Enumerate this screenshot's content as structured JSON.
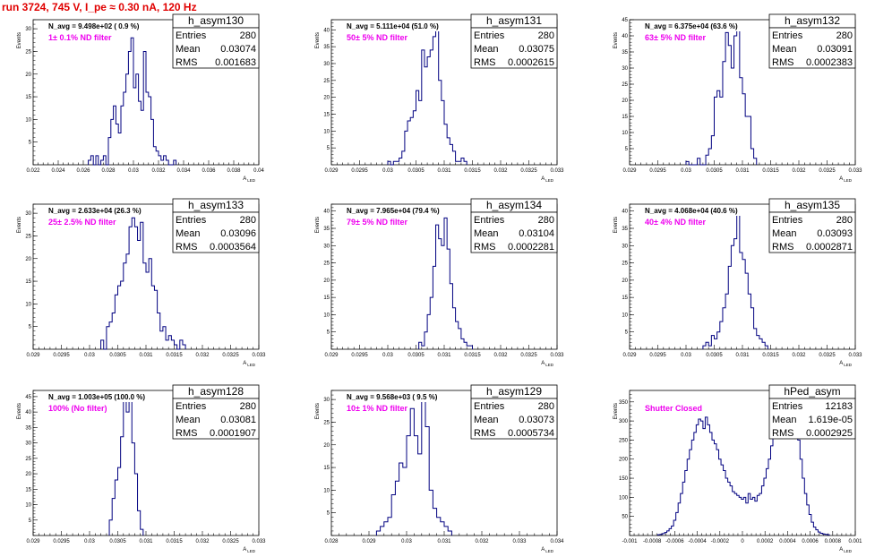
{
  "title": "run 3724,   745 V, I_pe ≈ 0.30 nA, 120 Hz",
  "colors": {
    "histogram": "#000080",
    "title": "#e00000",
    "filter_label": "#ee00ee"
  },
  "chart_data": [
    {
      "type": "bar",
      "name": "h_asym130",
      "ylabel": "Events",
      "xlabel": "A_LED",
      "xlim": [
        0.022,
        0.04
      ],
      "ylim": [
        0,
        32
      ],
      "xticks": [
        "0.022",
        "0.024",
        "0.026",
        "0.028",
        "0.03",
        "0.032",
        "0.034",
        "0.036",
        "0.038",
        "0.04"
      ],
      "yticks": [
        5,
        10,
        15,
        20,
        25,
        30
      ],
      "n_avg": "N_avg = 9.498e+02 ( 0.9 %)",
      "filter": "1± 0.1% ND filter",
      "stats": {
        "entries_label": "Entries",
        "entries": "280",
        "mean_label": "Mean",
        "mean": "0.03074",
        "rms_label": "RMS",
        "rms": "0.001683"
      },
      "bins": {
        "x0": 0.0264,
        "w": 0.0002,
        "values": [
          1,
          2,
          0,
          2,
          0,
          1,
          2,
          0,
          6,
          10,
          13,
          9,
          7,
          13,
          16,
          20,
          25,
          28,
          17,
          20,
          14,
          12,
          25,
          16,
          15,
          10,
          4,
          3,
          2,
          1,
          2,
          1,
          0,
          0,
          1
        ]
      }
    },
    {
      "type": "bar",
      "name": "h_asym131",
      "ylabel": "Events",
      "xlabel": "A_LED",
      "xlim": [
        0.029,
        0.033
      ],
      "ylim": [
        0,
        43
      ],
      "xticks": [
        "0.029",
        "0.0295",
        "0.03",
        "0.0305",
        "0.031",
        "0.0315",
        "0.032",
        "0.0325",
        "0.033"
      ],
      "yticks": [
        5,
        10,
        15,
        20,
        25,
        30,
        35,
        40
      ],
      "n_avg": "N_avg = 5.111e+04 (51.0 %)",
      "filter": "50± 5% ND filter",
      "stats": {
        "entries_label": "Entries",
        "entries": "280",
        "mean_label": "Mean",
        "mean": "0.03075",
        "rms_label": "RMS",
        "rms": "0.0002615"
      },
      "bins": {
        "x0": 0.03,
        "w": 5e-05,
        "values": [
          1,
          0,
          1,
          1,
          2,
          4,
          10,
          13,
          14,
          16,
          22,
          19,
          34,
          29,
          32,
          34,
          38,
          40,
          25,
          19,
          12,
          8,
          6,
          4,
          1,
          1,
          2,
          1
        ]
      }
    },
    {
      "type": "bar",
      "name": "h_asym132",
      "ylabel": "Events",
      "xlabel": "A_LED",
      "xlim": [
        0.029,
        0.033
      ],
      "ylim": [
        0,
        45
      ],
      "xticks": [
        "0.029",
        "0.0295",
        "0.03",
        "0.0305",
        "0.031",
        "0.0315",
        "0.032",
        "0.0325",
        "0.033"
      ],
      "yticks": [
        5,
        10,
        15,
        20,
        25,
        30,
        35,
        40,
        45
      ],
      "n_avg": "N_avg = 6.375e+04 (63.6 %)",
      "filter": "63± 5% ND filter",
      "stats": {
        "entries_label": "Entries",
        "entries": "280",
        "mean_label": "Mean",
        "mean": "0.03091",
        "rms_label": "RMS",
        "rms": "0.0002383"
      },
      "bins": {
        "x0": 0.03,
        "w": 5e-05,
        "values": [
          1,
          0,
          0,
          0,
          2,
          0,
          0,
          3,
          5,
          9,
          21,
          23,
          21,
          32,
          41,
          37,
          30,
          40,
          44,
          27,
          22,
          15,
          15,
          5,
          2
        ]
      }
    },
    {
      "type": "bar",
      "name": "h_asym133",
      "ylabel": "Events",
      "xlabel": "A_LED",
      "xlim": [
        0.029,
        0.033
      ],
      "ylim": [
        0,
        32
      ],
      "xticks": [
        "0.029",
        "0.0295",
        "0.03",
        "0.0305",
        "0.031",
        "0.0315",
        "0.032",
        "0.0325",
        "0.033"
      ],
      "yticks": [
        5,
        10,
        15,
        20,
        25,
        30
      ],
      "n_avg": "N_avg = 2.633e+04 (26.3 %)",
      "filter": "25± 2.5% ND filter",
      "stats": {
        "entries_label": "Entries",
        "entries": "280",
        "mean_label": "Mean",
        "mean": "0.03096",
        "rms_label": "RMS",
        "rms": "0.0003564"
      },
      "bins": {
        "x0": 0.0302,
        "w": 5e-05,
        "values": [
          2,
          0,
          5,
          6,
          8,
          12,
          14,
          15,
          19,
          21,
          27,
          29,
          27,
          24,
          28,
          19,
          17,
          20,
          14,
          13,
          8,
          4,
          5,
          2,
          3,
          2,
          1,
          0,
          2,
          1
        ]
      }
    },
    {
      "type": "bar",
      "name": "h_asym134",
      "ylabel": "Events",
      "xlabel": "A_LED",
      "xlim": [
        0.029,
        0.033
      ],
      "ylim": [
        0,
        42
      ],
      "xticks": [
        "0.029",
        "0.0295",
        "0.03",
        "0.0305",
        "0.031",
        "0.0315",
        "0.032",
        "0.0325",
        "0.033"
      ],
      "yticks": [
        5,
        10,
        15,
        20,
        25,
        30,
        35,
        40
      ],
      "n_avg": "N_avg = 7.965e+04 (79.4 %)",
      "filter": "79± 5% ND filter",
      "stats": {
        "entries_label": "Entries",
        "entries": "280",
        "mean_label": "Mean",
        "mean": "0.03104",
        "rms_label": "RMS",
        "rms": "0.0002281"
      },
      "bins": {
        "x0": 0.03055,
        "w": 5e-05,
        "values": [
          2,
          1,
          5,
          10,
          15,
          24,
          36,
          32,
          30,
          38,
          29,
          19,
          12,
          8,
          6,
          3,
          2,
          1,
          1
        ]
      }
    },
    {
      "type": "bar",
      "name": "h_asym135",
      "ylabel": "Events",
      "xlabel": "A_LED",
      "xlim": [
        0.029,
        0.033
      ],
      "ylim": [
        0,
        42
      ],
      "xticks": [
        "0.029",
        "0.0295",
        "0.03",
        "0.0305",
        "0.031",
        "0.0315",
        "0.032",
        "0.0325",
        "0.033"
      ],
      "yticks": [
        5,
        10,
        15,
        20,
        25,
        30,
        35,
        40
      ],
      "n_avg": "N_avg = 4.068e+04 (40.6 %)",
      "filter": "40± 4% ND filter",
      "stats": {
        "entries_label": "Entries",
        "entries": "280",
        "mean_label": "Mean",
        "mean": "0.03093",
        "rms_label": "RMS",
        "rms": "0.0002871"
      },
      "bins": {
        "x0": 0.0303,
        "w": 5e-05,
        "values": [
          1,
          2,
          1,
          4,
          3,
          5,
          8,
          12,
          16,
          24,
          30,
          32,
          40,
          28,
          26,
          22,
          16,
          12,
          6,
          4,
          3,
          2,
          1
        ]
      }
    },
    {
      "type": "bar",
      "name": "h_asym128",
      "ylabel": "Events",
      "xlabel": "A_LED",
      "xlim": [
        0.029,
        0.033
      ],
      "ylim": [
        0,
        47
      ],
      "xticks": [
        "0.029",
        "0.0295",
        "0.03",
        "0.0305",
        "0.031",
        "0.0315",
        "0.032",
        "0.0325",
        "0.033"
      ],
      "yticks": [
        5,
        10,
        15,
        20,
        25,
        30,
        35,
        40,
        45
      ],
      "n_avg": "N_avg = 1.003e+05 (100.0 %)",
      "filter": "100% (No filter)",
      "stats": {
        "entries_label": "Entries",
        "entries": "280",
        "mean_label": "Mean",
        "mean": "0.03081",
        "rms_label": "RMS",
        "rms": "0.0001907"
      },
      "bins": {
        "x0": 0.03035,
        "w": 5e-05,
        "values": [
          5,
          12,
          18,
          22,
          32,
          44,
          40,
          45,
          30,
          20,
          8,
          2
        ]
      }
    },
    {
      "type": "bar",
      "name": "h_asym129",
      "ylabel": "Events",
      "xlabel": "A_LED",
      "xlim": [
        0.028,
        0.034
      ],
      "ylim": [
        0,
        32
      ],
      "xticks": [
        "0.028",
        "0.029",
        "0.03",
        "0.031",
        "0.032",
        "0.033",
        "0.034"
      ],
      "yticks": [
        5,
        10,
        15,
        20,
        25,
        30
      ],
      "n_avg": "N_avg = 9.568e+03 ( 9.5 %)",
      "filter": "10± 1% ND filter",
      "stats": {
        "entries_label": "Entries",
        "entries": "280",
        "mean_label": "Mean",
        "mean": "0.03073",
        "rms_label": "RMS",
        "rms": "0.0005734"
      },
      "bins": {
        "x0": 0.0292,
        "w": 0.0001,
        "values": [
          1,
          2,
          3,
          4,
          9,
          12,
          16,
          15,
          22,
          28,
          22,
          18,
          31,
          24,
          10,
          6,
          4,
          3,
          2,
          1
        ]
      }
    },
    {
      "type": "bar",
      "name": "hPed_asym",
      "ylabel": "Events",
      "xlabel": "A_LED",
      "xlim": [
        -0.001,
        0.001
      ],
      "ylim": [
        0,
        380
      ],
      "xticks": [
        "-0.001",
        "-0.0008",
        "-0.0006",
        "-0.0004",
        "-0.0002",
        "0",
        "0.0002",
        "0.0004",
        "0.0006",
        "0.0008",
        "0.001"
      ],
      "yticks": [
        50,
        100,
        150,
        200,
        250,
        300,
        350
      ],
      "n_avg": "",
      "filter": "Shutter Closed",
      "stats": {
        "entries_label": "Entries",
        "entries": "12183",
        "mean_label": "Mean",
        "mean": "1.619e-05",
        "rms_label": "RMS",
        "rms": "0.0002925"
      },
      "bins": {
        "x0": -0.00075,
        "w": 2e-05,
        "values": [
          2,
          3,
          5,
          8,
          12,
          18,
          25,
          40,
          60,
          85,
          110,
          140,
          170,
          200,
          225,
          250,
          270,
          290,
          305,
          300,
          280,
          310,
          290,
          270,
          250,
          240,
          225,
          200,
          185,
          170,
          150,
          140,
          130,
          115,
          110,
          105,
          100,
          95,
          100,
          85,
          110,
          95,
          100,
          90,
          105,
          110,
          130,
          150,
          175,
          200,
          235,
          260,
          285,
          300,
          320,
          335,
          350,
          360,
          345,
          320,
          300,
          280,
          250,
          200,
          150,
          110,
          80,
          55,
          35,
          22,
          15,
          9,
          6,
          4,
          3,
          2
        ]
      }
    }
  ]
}
